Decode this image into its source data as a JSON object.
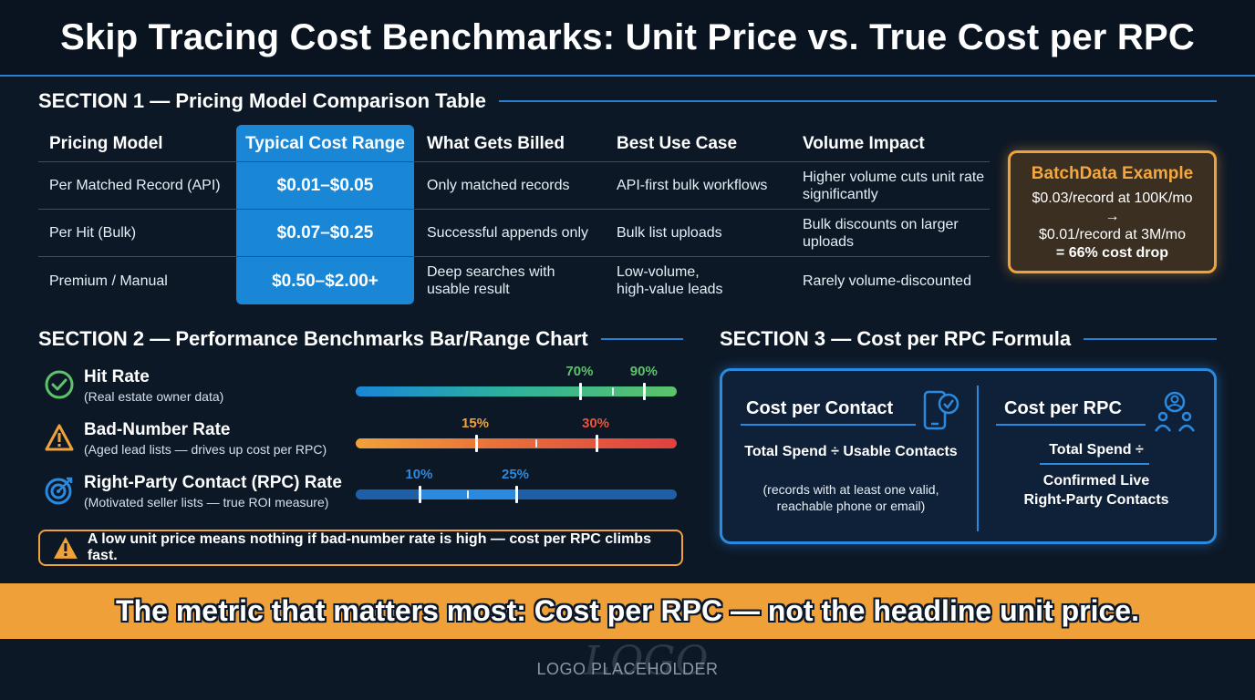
{
  "title": "Skip Tracing Cost Benchmarks: Unit Price vs. True Cost per RPC",
  "section1": {
    "heading": "SECTION 1 — Pricing Model Comparison Table",
    "columns": [
      "Pricing Model",
      "Typical Cost Range",
      "What Gets Billed",
      "Best Use Case",
      "Volume Impact"
    ],
    "rows": [
      {
        "model": "Per Matched Record (API)",
        "cost": "$0.01–$0.05",
        "billed": "Only matched records",
        "use": "API-first bulk workflows",
        "impact": "Higher volume cuts unit rate significantly"
      },
      {
        "model": "Per Hit (Bulk)",
        "cost": "$0.07–$0.25",
        "billed": "Successful appends only",
        "use": "Bulk list uploads",
        "impact": "Bulk discounts on larger uploads"
      },
      {
        "model": "Premium / Manual",
        "cost": "$0.50–$2.00+",
        "billed": "Deep searches with usable result",
        "use": "Low-volume, high-value leads",
        "impact": "Rarely volume-discounted"
      }
    ],
    "example": {
      "title": "BatchData Example",
      "line1": "$0.03/record at 100K/mo",
      "arrow": "→",
      "line2": "$0.01/record at 3M/mo",
      "result": "= 66% cost drop"
    }
  },
  "section2": {
    "heading": "SECTION 2 — Performance Benchmarks Bar/Range Chart",
    "metrics": [
      {
        "title": "Hit Rate",
        "sub": "(Real estate owner data)",
        "low": 70,
        "high": 90,
        "low_label": "70%",
        "high_label": "90%",
        "color": "#5cc36a"
      },
      {
        "title": "Bad-Number Rate",
        "sub": "(Aged lead lists — drives up cost per RPC)",
        "low": 15,
        "high": 30,
        "low_label": "15%",
        "high_label": "30%",
        "color": "#f0a23a"
      },
      {
        "title": "Right-Party Contact (RPC) Rate",
        "sub": "(Motivated seller lists — true ROI measure)",
        "low": 10,
        "high": 25,
        "low_label": "10%",
        "high_label": "25%",
        "color": "#2a8ae0"
      }
    ],
    "warning": "A low unit price means nothing if bad-number rate is high — cost per RPC climbs fast."
  },
  "section3": {
    "heading": "SECTION 3 — Cost per RPC Formula",
    "left": {
      "title": "Cost per Contact",
      "formula": "Total Spend ÷ Usable Contacts",
      "note1": "(records with at least one valid,",
      "note2": "reachable phone or email)"
    },
    "right": {
      "title": "Cost per RPC",
      "numerator": "Total Spend ÷",
      "denom1": "Confirmed Live",
      "denom2": "Right-Party Contacts"
    }
  },
  "banner": "The metric that matters most: Cost per RPC — not the headline unit price.",
  "logo": "LOGO PLACEHOLDER",
  "logo_script": "LOGO"
}
